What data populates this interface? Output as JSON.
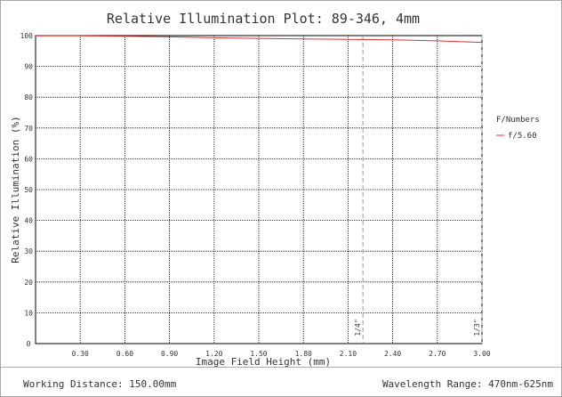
{
  "chart_data": {
    "type": "line",
    "title": "Relative Illumination Plot: 89-346, 4mm",
    "xlabel": "Image Field Height (mm)",
    "ylabel": "Relative Illumination (%)",
    "xlim": [
      0,
      3.0
    ],
    "ylim": [
      0,
      100
    ],
    "x_ticks": [
      "0.30",
      "0.60",
      "0.90",
      "1.20",
      "1.50",
      "1.80",
      "2.10",
      "2.40",
      "2.70",
      "3.00"
    ],
    "x_tick_values": [
      0.3,
      0.6,
      0.9,
      1.2,
      1.5,
      1.8,
      2.1,
      2.4,
      2.7,
      3.0
    ],
    "x_origin_label": "0",
    "y_ticks": [
      "100",
      "90",
      "80",
      "70",
      "60",
      "50",
      "40",
      "30",
      "20",
      "10"
    ],
    "y_tick_values": [
      100,
      90,
      80,
      70,
      60,
      50,
      40,
      30,
      20,
      10
    ],
    "grid": true,
    "legend": {
      "title": "F/Numbers",
      "position": "right"
    },
    "series": [
      {
        "name": "f/5.60",
        "color": "#e03030",
        "x": [
          0,
          0.3,
          0.6,
          0.9,
          1.2,
          1.5,
          1.8,
          2.1,
          2.4,
          2.7,
          3.0
        ],
        "y": [
          99.9,
          99.9,
          99.8,
          99.6,
          99.3,
          99.1,
          98.9,
          98.8,
          98.6,
          98.3,
          97.8
        ]
      }
    ],
    "markers": [
      {
        "label": "1/4\"",
        "x": 2.2
      },
      {
        "label": "1/3\"",
        "x": 3.0
      }
    ]
  },
  "footer": {
    "working_distance": "Working Distance: 150.00mm",
    "wavelength_range": "Wavelength Range: 470nm-625nm"
  }
}
